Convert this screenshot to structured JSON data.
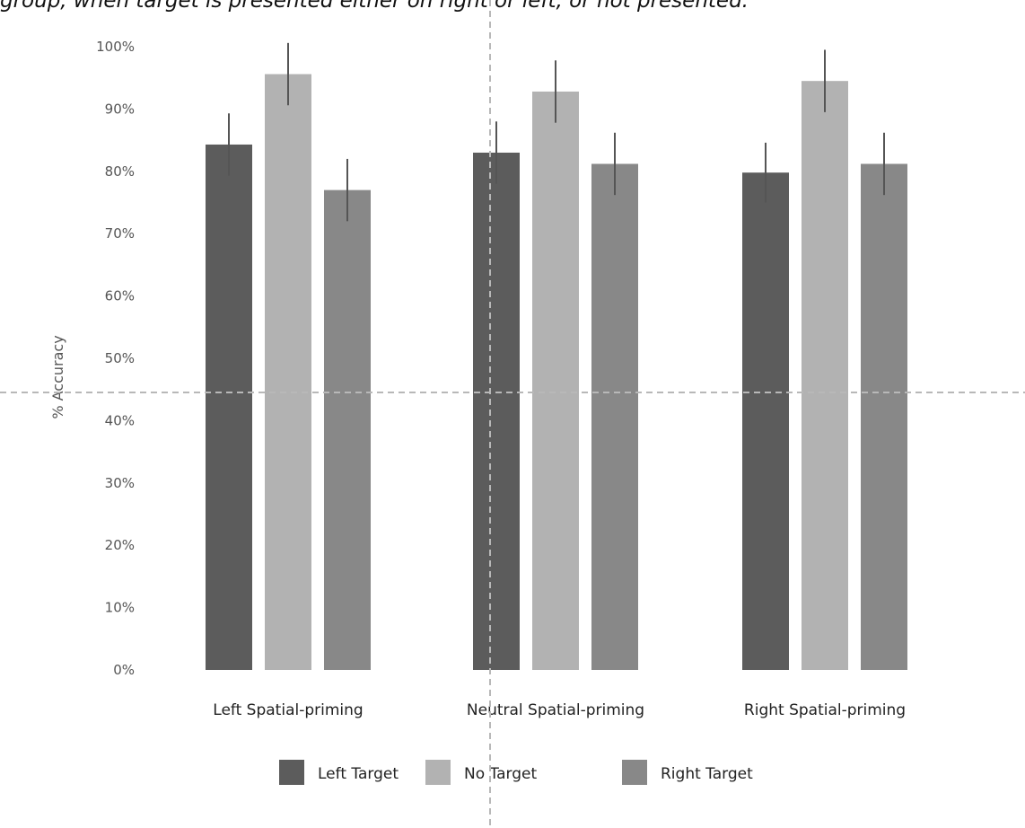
{
  "caption": "group, when target is presented either on right or left, or not presented.",
  "chart_data": {
    "type": "bar",
    "categories": [
      "Left Spatial-priming",
      "Neutral Spatial-priming",
      "Right Spatial-priming"
    ],
    "series": [
      {
        "name": "Left Target",
        "color": "#5c5c5c",
        "values": [
          84.3,
          83.0,
          79.8
        ],
        "errors": [
          5.0,
          5.0,
          4.8
        ]
      },
      {
        "name": "No Target",
        "color": "#b2b2b2",
        "values": [
          95.6,
          92.8,
          94.5
        ],
        "errors": [
          5.0,
          5.0,
          5.0
        ]
      },
      {
        "name": "Right Target",
        "color": "#888888",
        "values": [
          77.0,
          81.2,
          81.2
        ],
        "errors": [
          5.0,
          5.0,
          5.0
        ]
      }
    ],
    "ylabel": "% Accuracy",
    "ylim": [
      0,
      100
    ],
    "yticks": [
      "0%",
      "10%",
      "20%",
      "30%",
      "40%",
      "50%",
      "60%",
      "70%",
      "80%",
      "90%",
      "100%"
    ],
    "error_bar_color": "#555555",
    "legend_position": "bottom",
    "grid": false
  }
}
